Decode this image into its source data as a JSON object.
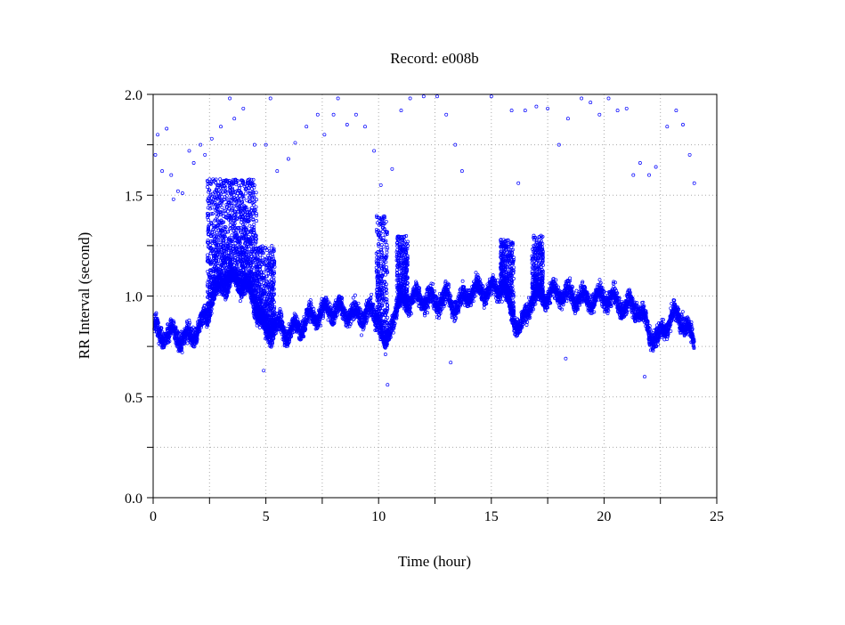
{
  "chart_data": {
    "type": "scatter",
    "title": "Record:  e008b",
    "xlabel": "Time (hour)",
    "ylabel": "RR Interval (second)",
    "xlim": [
      0,
      25
    ],
    "ylim": [
      0.0,
      2.0
    ],
    "x_ticks": [
      "0",
      "5",
      "10",
      "15",
      "20",
      "25"
    ],
    "y_ticks": [
      "0.0",
      "0.5",
      "1.0",
      "1.5",
      "2.0"
    ],
    "x_minor_step": 2.5,
    "y_minor_step": 0.25,
    "grid": true,
    "marker": "open-circle",
    "color": "#0000ff",
    "baseline_trend": [
      [
        0.0,
        0.86
      ],
      [
        0.3,
        0.8
      ],
      [
        0.6,
        0.82
      ],
      [
        1.0,
        0.8
      ],
      [
        1.5,
        0.79
      ],
      [
        2.0,
        0.84
      ],
      [
        2.4,
        0.9
      ],
      [
        2.6,
        1.0
      ],
      [
        3.0,
        1.05
      ],
      [
        3.5,
        1.08
      ],
      [
        4.0,
        1.06
      ],
      [
        4.4,
        1.0
      ],
      [
        4.7,
        0.9
      ],
      [
        5.0,
        0.82
      ],
      [
        5.5,
        0.85
      ],
      [
        6.0,
        0.82
      ],
      [
        6.5,
        0.85
      ],
      [
        7.0,
        0.9
      ],
      [
        7.5,
        0.92
      ],
      [
        8.0,
        0.94
      ],
      [
        8.5,
        0.92
      ],
      [
        9.0,
        0.9
      ],
      [
        9.5,
        0.92
      ],
      [
        10.0,
        0.9
      ],
      [
        10.3,
        0.72
      ],
      [
        10.6,
        0.9
      ],
      [
        11.0,
        0.97
      ],
      [
        11.5,
        0.99
      ],
      [
        12.0,
        0.99
      ],
      [
        12.5,
        0.97
      ],
      [
        13.0,
        0.99
      ],
      [
        13.5,
        0.95
      ],
      [
        14.0,
        1.02
      ],
      [
        14.5,
        1.03
      ],
      [
        15.0,
        1.03
      ],
      [
        15.5,
        1.05
      ],
      [
        16.0,
        0.9
      ],
      [
        16.3,
        0.82
      ],
      [
        16.7,
        0.97
      ],
      [
        17.0,
        1.0
      ],
      [
        17.5,
        1.0
      ],
      [
        18.0,
        1.02
      ],
      [
        18.5,
        1.0
      ],
      [
        19.0,
        0.99
      ],
      [
        19.5,
        0.98
      ],
      [
        20.0,
        1.0
      ],
      [
        20.5,
        0.97
      ],
      [
        21.0,
        0.95
      ],
      [
        21.5,
        0.95
      ],
      [
        22.0,
        0.82
      ],
      [
        22.4,
        0.78
      ],
      [
        22.7,
        0.85
      ],
      [
        23.0,
        0.9
      ],
      [
        23.5,
        0.89
      ],
      [
        24.0,
        0.76
      ]
    ],
    "burst_regions": [
      {
        "from": 2.4,
        "to": 4.6,
        "max": 1.58
      },
      {
        "from": 4.6,
        "to": 5.4,
        "max": 1.25
      },
      {
        "from": 9.9,
        "to": 10.4,
        "max": 1.4
      },
      {
        "from": 10.8,
        "to": 11.3,
        "max": 1.3
      },
      {
        "from": 15.4,
        "to": 16.0,
        "max": 1.28
      },
      {
        "from": 16.8,
        "to": 17.3,
        "max": 1.3
      }
    ],
    "outliers": [
      [
        0.1,
        1.7
      ],
      [
        0.2,
        1.8
      ],
      [
        0.4,
        1.62
      ],
      [
        0.6,
        1.83
      ],
      [
        0.8,
        1.6
      ],
      [
        0.9,
        1.48
      ],
      [
        1.1,
        1.52
      ],
      [
        1.3,
        1.51
      ],
      [
        1.6,
        1.72
      ],
      [
        1.8,
        1.66
      ],
      [
        2.1,
        1.75
      ],
      [
        2.3,
        1.7
      ],
      [
        2.6,
        1.78
      ],
      [
        3.0,
        1.84
      ],
      [
        3.4,
        1.98
      ],
      [
        3.6,
        1.88
      ],
      [
        4.0,
        1.93
      ],
      [
        4.5,
        1.75
      ],
      [
        5.0,
        1.75
      ],
      [
        5.2,
        1.98
      ],
      [
        5.5,
        1.62
      ],
      [
        6.0,
        1.68
      ],
      [
        6.3,
        1.76
      ],
      [
        6.8,
        1.84
      ],
      [
        7.3,
        1.9
      ],
      [
        7.6,
        1.8
      ],
      [
        8.0,
        1.9
      ],
      [
        8.2,
        1.98
      ],
      [
        8.6,
        1.85
      ],
      [
        9.0,
        1.9
      ],
      [
        9.4,
        1.84
      ],
      [
        9.8,
        1.72
      ],
      [
        10.1,
        1.55
      ],
      [
        10.6,
        1.63
      ],
      [
        11.0,
        1.92
      ],
      [
        11.4,
        1.98
      ],
      [
        12.0,
        1.99
      ],
      [
        12.6,
        1.99
      ],
      [
        13.0,
        1.9
      ],
      [
        13.4,
        1.75
      ],
      [
        13.7,
        1.62
      ],
      [
        15.0,
        1.99
      ],
      [
        15.9,
        1.92
      ],
      [
        16.2,
        1.56
      ],
      [
        16.5,
        1.92
      ],
      [
        17.0,
        1.94
      ],
      [
        17.5,
        1.93
      ],
      [
        18.0,
        1.75
      ],
      [
        18.4,
        1.88
      ],
      [
        19.0,
        1.98
      ],
      [
        19.4,
        1.96
      ],
      [
        19.8,
        1.9
      ],
      [
        20.2,
        1.98
      ],
      [
        20.6,
        1.92
      ],
      [
        21.0,
        1.93
      ],
      [
        21.3,
        1.6
      ],
      [
        21.6,
        1.66
      ],
      [
        22.0,
        1.6
      ],
      [
        22.3,
        1.64
      ],
      [
        22.8,
        1.84
      ],
      [
        23.2,
        1.92
      ],
      [
        23.5,
        1.85
      ],
      [
        23.8,
        1.7
      ],
      [
        24.0,
        1.56
      ],
      [
        10.4,
        0.56
      ],
      [
        4.9,
        0.63
      ],
      [
        18.3,
        0.69
      ],
      [
        21.8,
        0.6
      ],
      [
        13.2,
        0.67
      ]
    ]
  }
}
